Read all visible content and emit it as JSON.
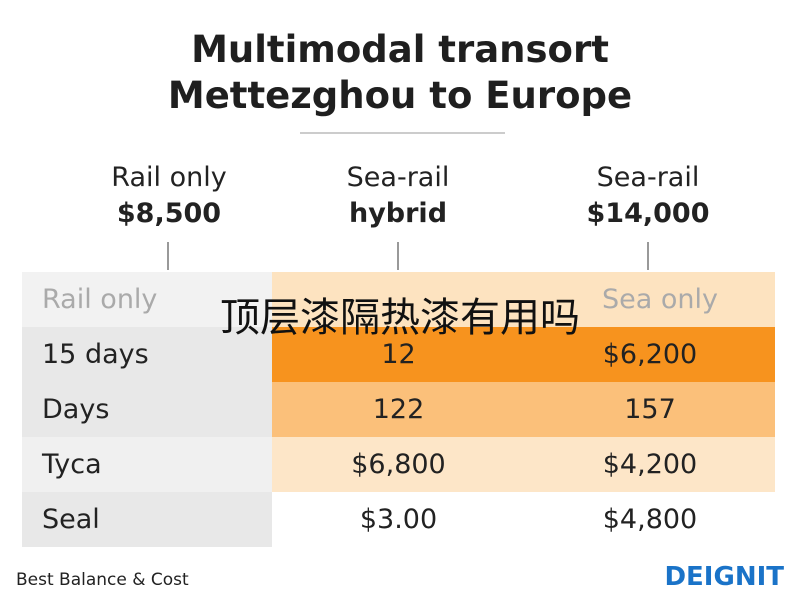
{
  "header": {
    "title_line1": "Multimodal transort",
    "title_line2": "Mettezghou to Europe"
  },
  "columns": [
    {
      "line1": "Rail only",
      "line2": "$8,500"
    },
    {
      "line1": "Sea-rail",
      "line2": "hybrid"
    },
    {
      "line1": "Sea-rail",
      "line2": "$14,000"
    }
  ],
  "table": {
    "header_row": {
      "left": "Rail only",
      "right": "Sea only"
    },
    "rows": [
      [
        "15 days",
        "12",
        "$6,200"
      ],
      [
        "Days",
        "122",
        "157"
      ],
      [
        "Tyca",
        "$6,800",
        "$4,200"
      ],
      [
        "Seal",
        "$3.00",
        "$4,800"
      ]
    ]
  },
  "overlay": "顶层漆隔热漆有用吗",
  "footer": {
    "caption": "Best Balance & Cost",
    "brand": "DEIGNIT"
  }
}
